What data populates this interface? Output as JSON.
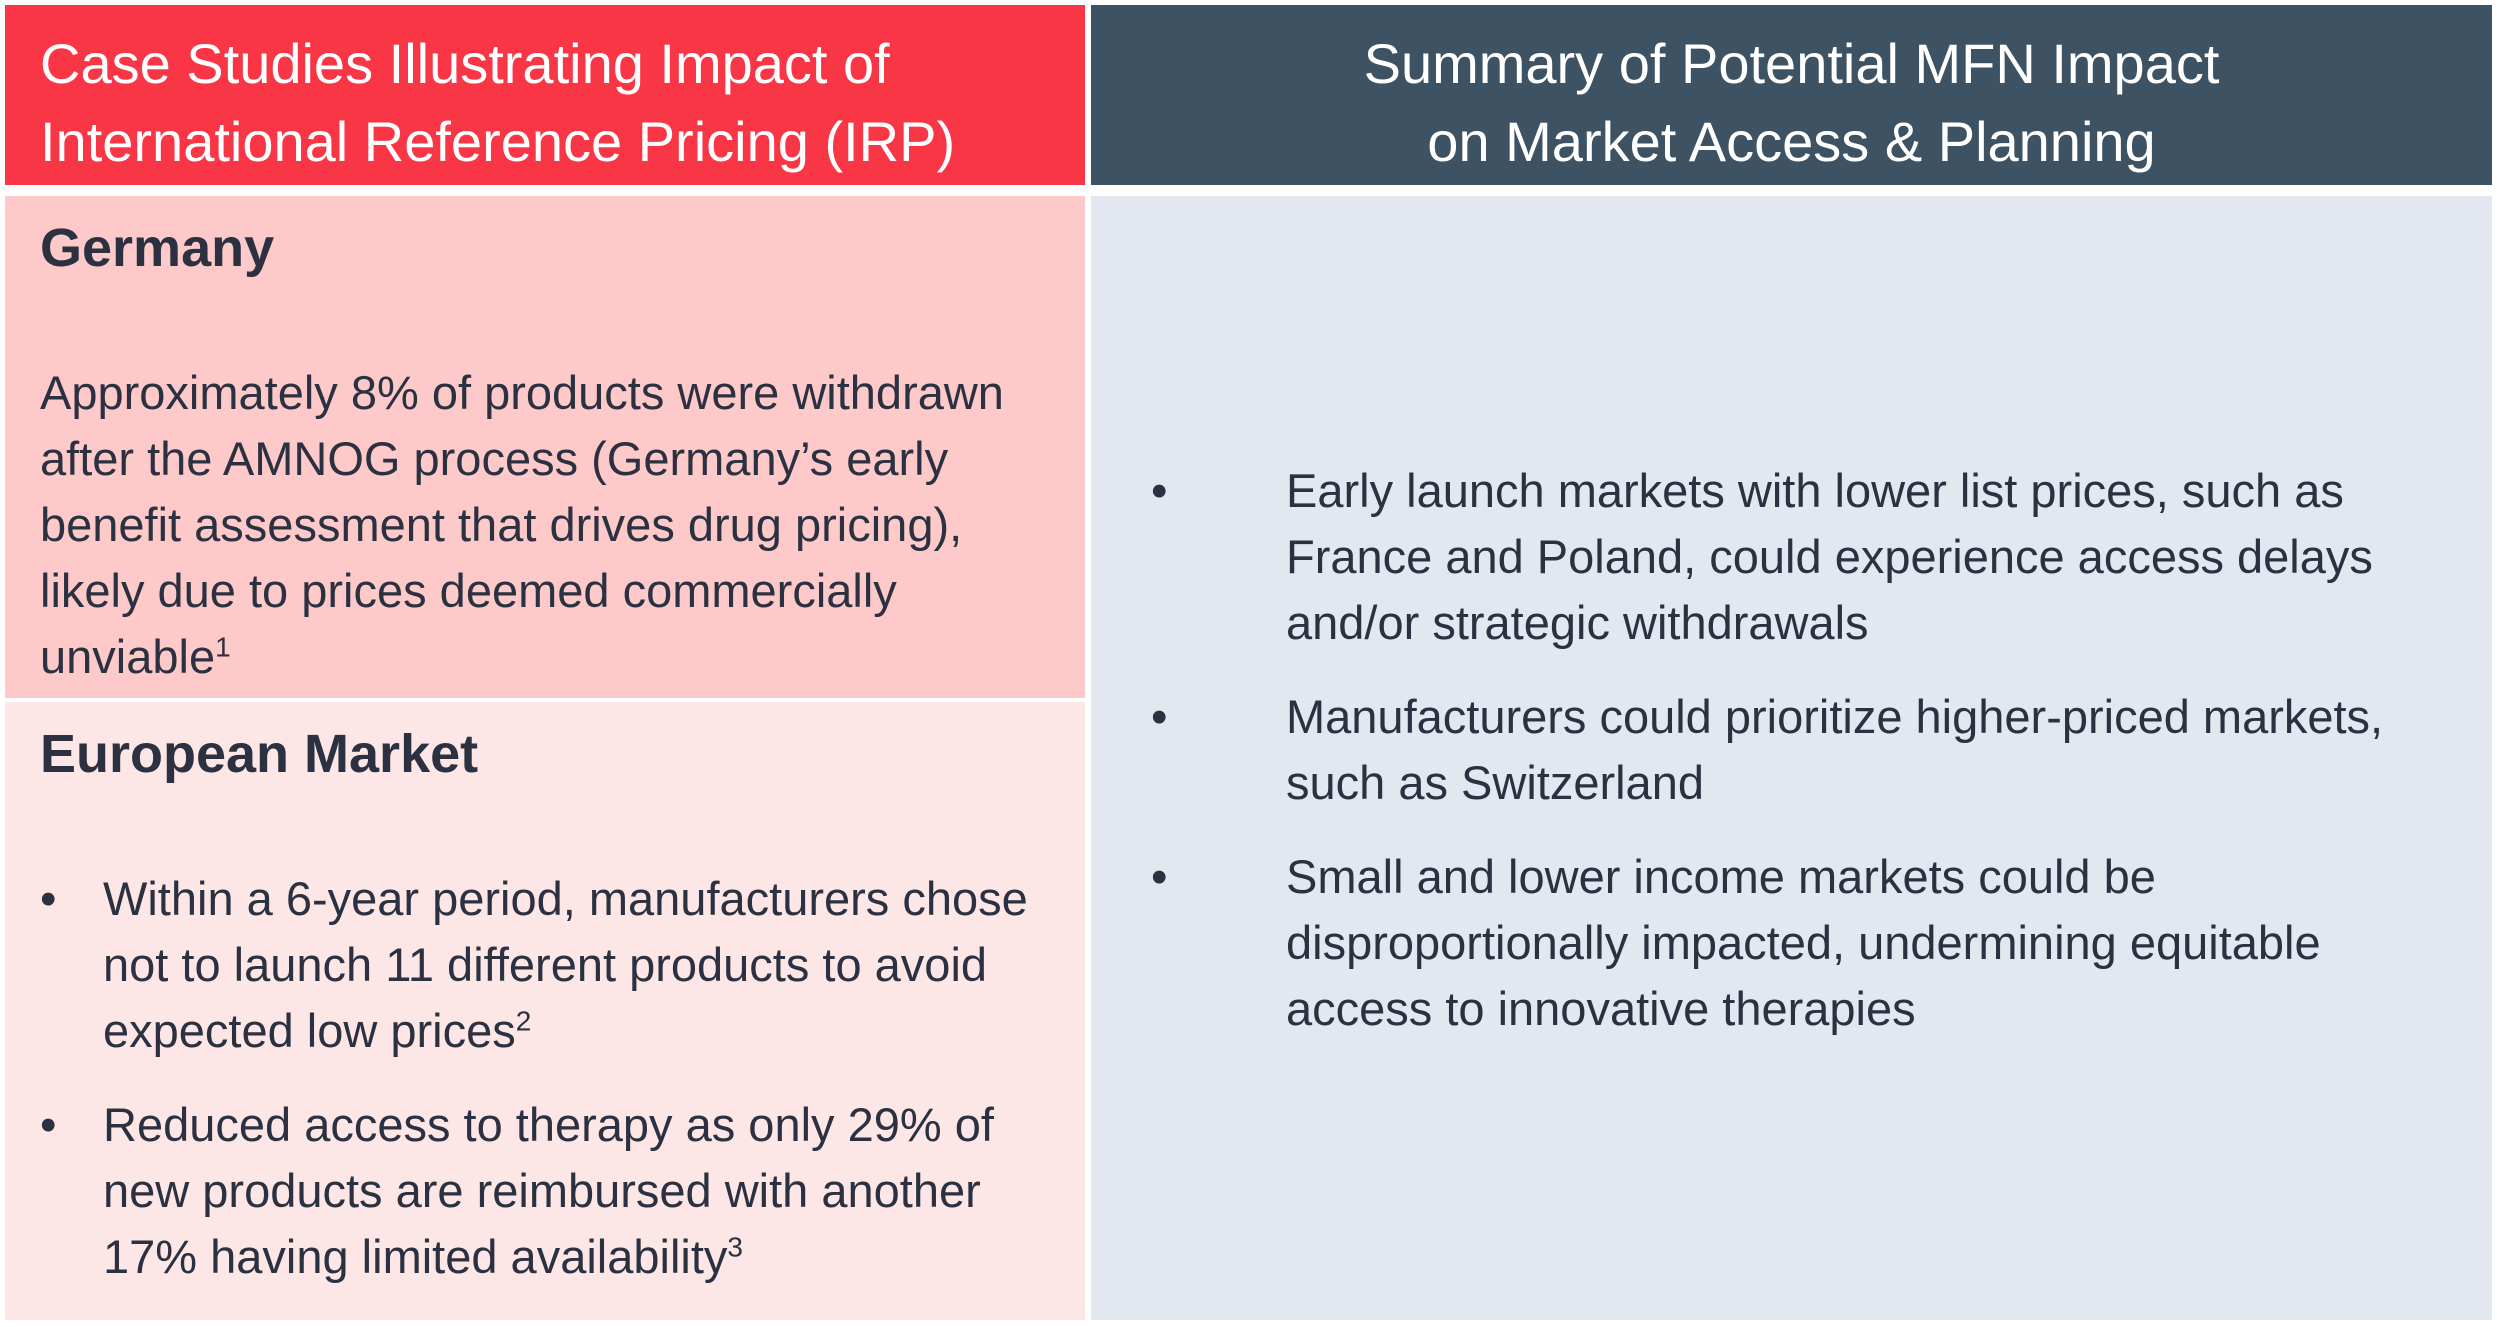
{
  "left": {
    "header": [
      "Case Studies Illustrating Impact of",
      "International Reference Pricing (IRP)"
    ],
    "germany": {
      "title": "Germany",
      "text": "Approximately 8% of products were withdrawn after the AMNOG process (Germany’s early benefit assessment that drives drug pricing), likely due to prices deemed commercially unviable",
      "note": "1"
    },
    "europe": {
      "title": "European Market",
      "bullets": [
        {
          "text": "Within a 6-year period, manufacturers chose not to launch 11 different products to avoid expected low prices",
          "note": "2"
        },
        {
          "text": "Reduced access to therapy as only 29% of new products are reimbursed with another 17% having limited availability",
          "note": "3"
        }
      ]
    }
  },
  "right": {
    "header": [
      "Summary of Potential MFN Impact",
      "on Market Access & Planning"
    ],
    "bullets": [
      "Early launch markets with lower list prices, such as France and Poland, could experience access delays and/or strategic withdrawals",
      "Manufacturers could prioritize higher-priced markets, such as Switzerland",
      "Small and lower income markets could be disproportionally impacted, undermining equitable access to innovative therapies"
    ]
  }
}
